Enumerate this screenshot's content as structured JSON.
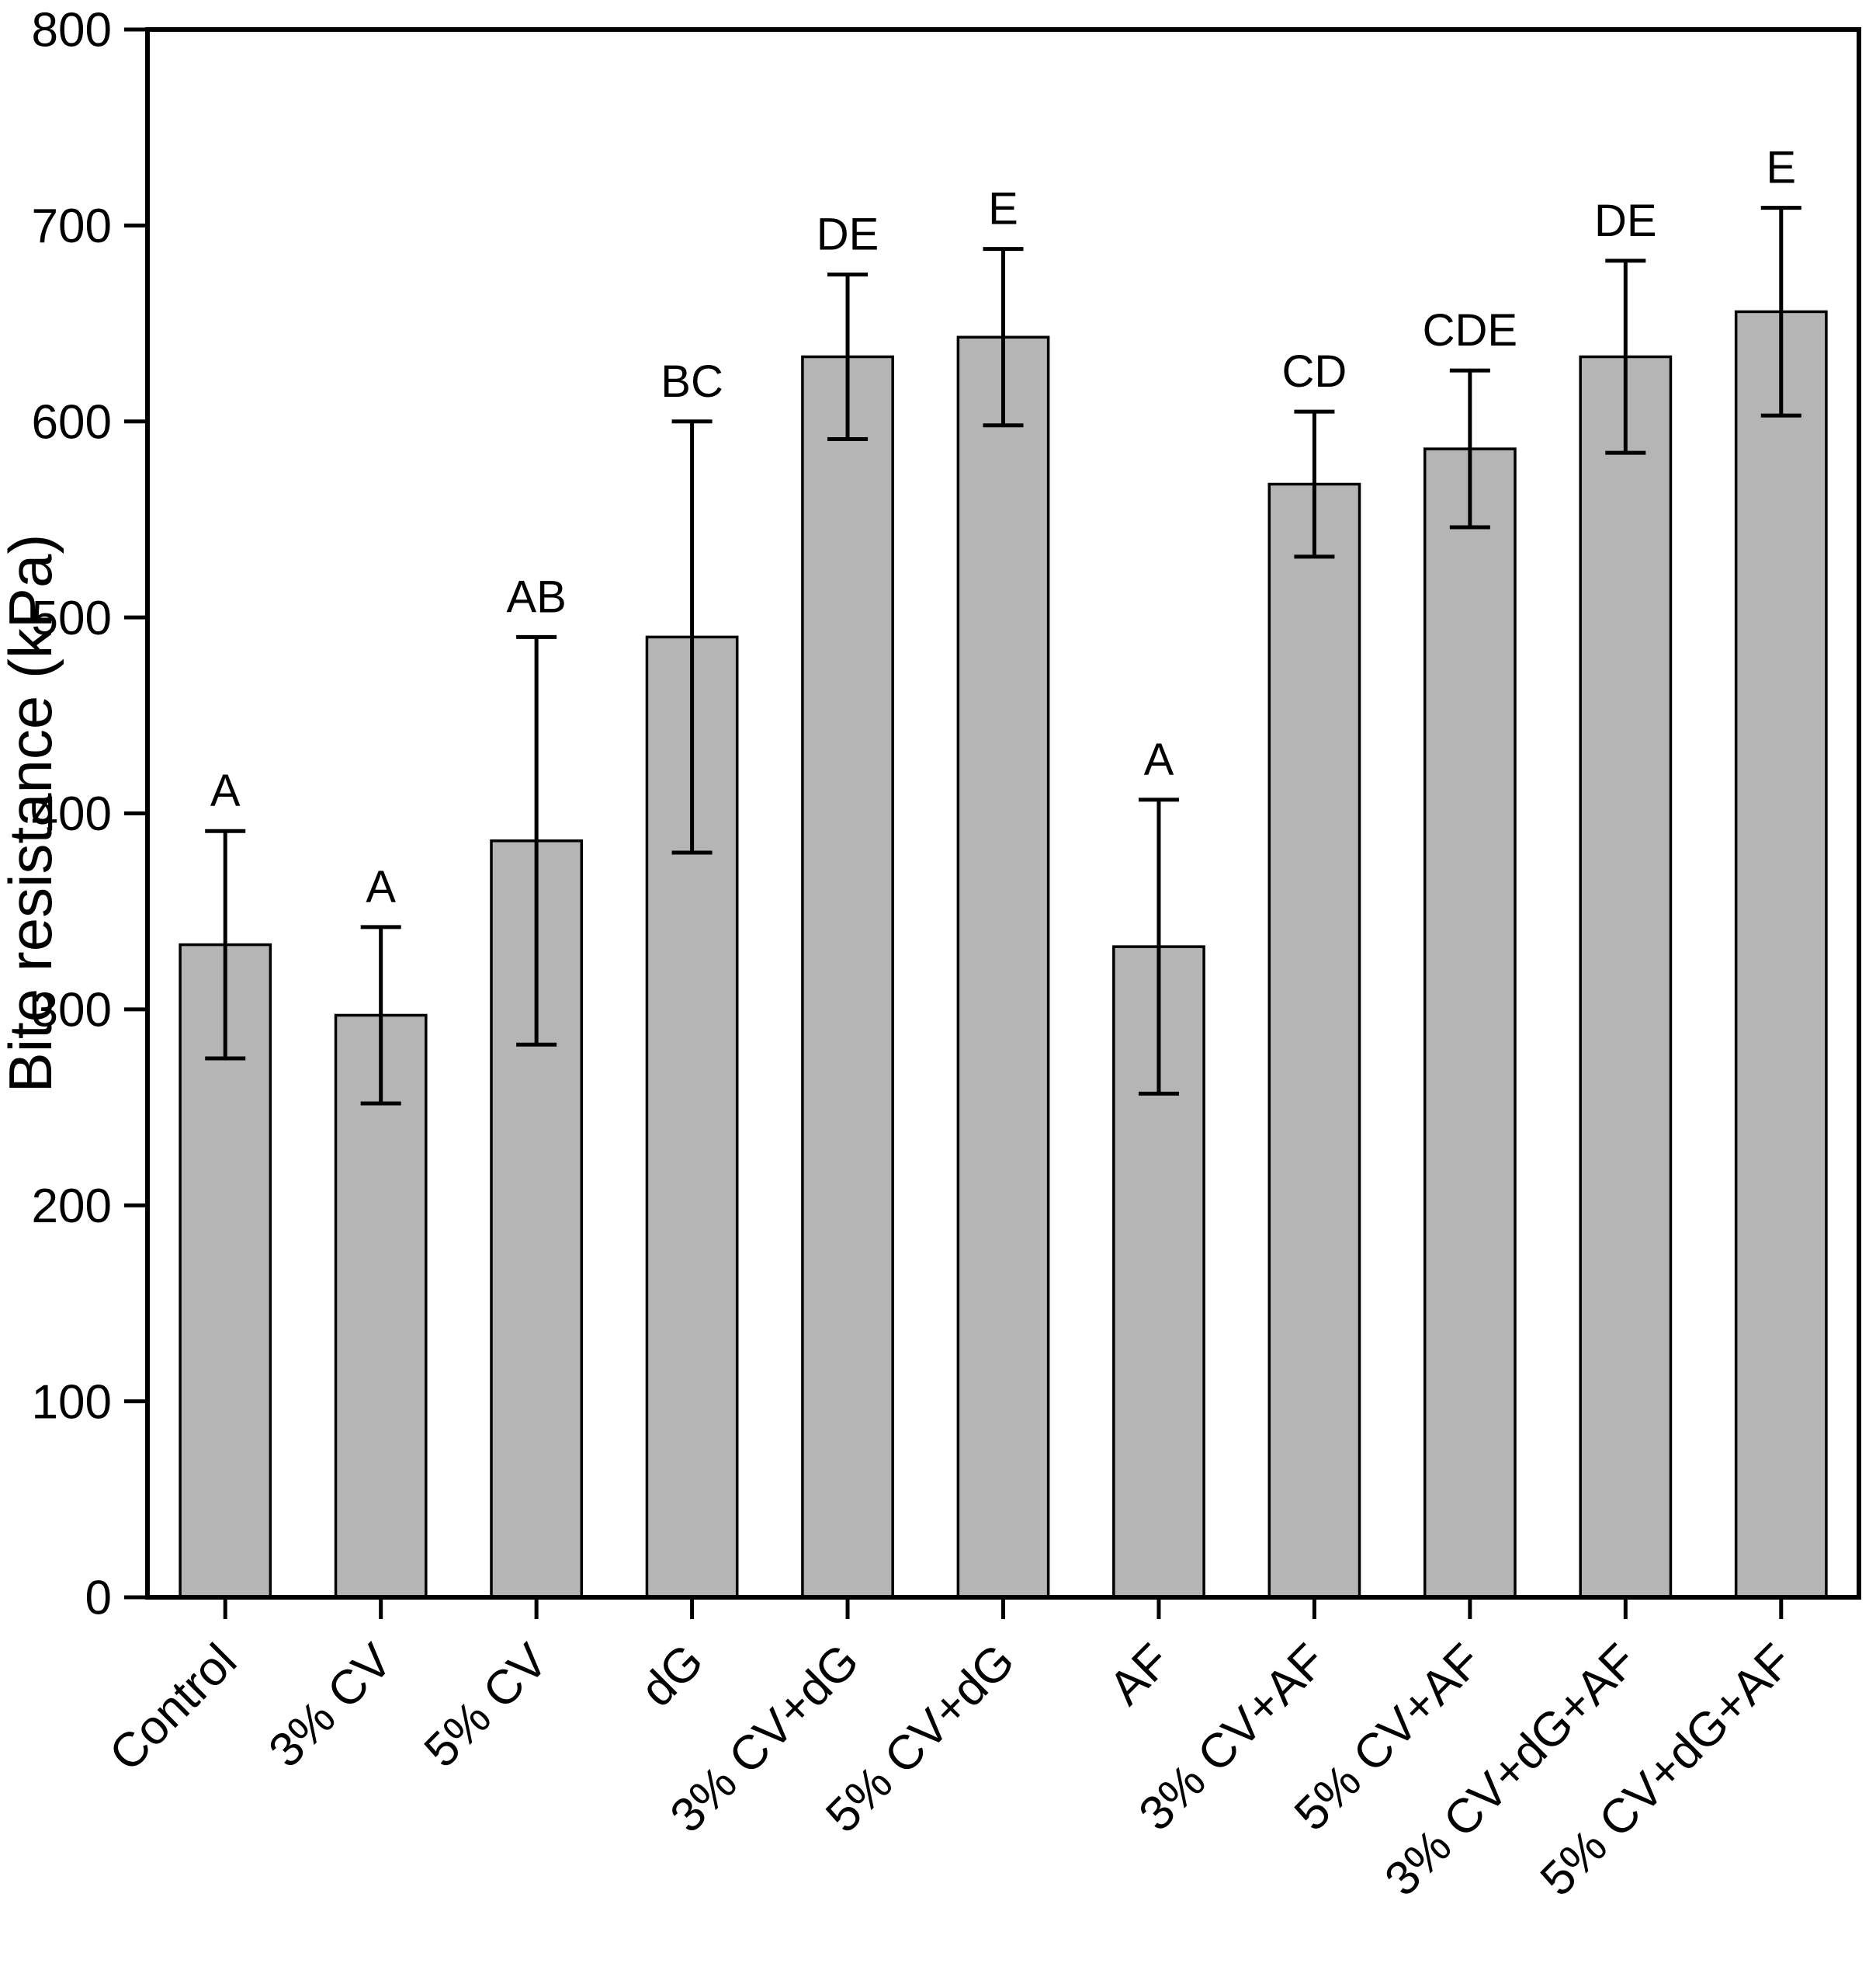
{
  "chart_data": {
    "type": "bar",
    "title": "",
    "xlabel": "",
    "ylabel": "Bite resistance (kPa)",
    "ylim": [
      0,
      800
    ],
    "yticks": [
      0,
      100,
      200,
      300,
      400,
      500,
      600,
      700,
      800
    ],
    "grid": false,
    "legend": "none",
    "categories": [
      "Control",
      "3% CV",
      "5% CV",
      "dG",
      "3% CV+dG",
      "5% CV+dG",
      "AF",
      "3% CV+AF",
      "5% CV+AF",
      "3% CV+dG+AF",
      "5% CV+dG+AF"
    ],
    "values": [
      333,
      297,
      386,
      490,
      633,
      643,
      332,
      568,
      586,
      633,
      656
    ],
    "errors": [
      58,
      45,
      104,
      110,
      42,
      45,
      75,
      37,
      40,
      49,
      53
    ],
    "letters": [
      "A",
      "A",
      "AB",
      "BC",
      "DE",
      "E",
      "A",
      "CD",
      "CDE",
      "DE",
      "E"
    ],
    "colors": {
      "bar_fill": "#b5b5b5",
      "bar_stroke": "#000000",
      "axis": "#000000",
      "error_bar": "#000000",
      "background": "#ffffff"
    }
  }
}
